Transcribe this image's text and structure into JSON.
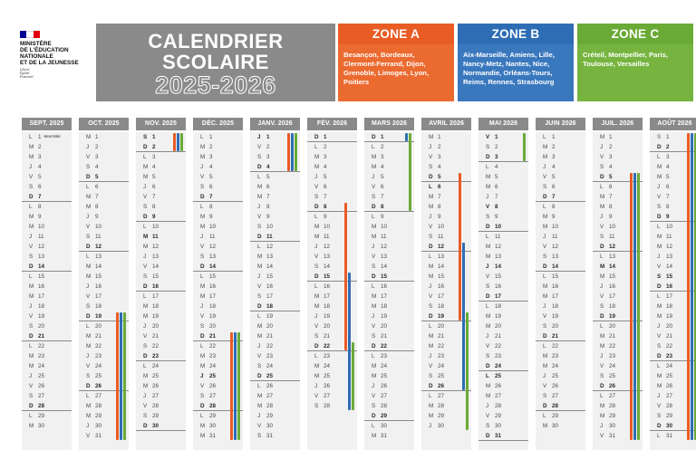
{
  "ministry": {
    "name_lines": [
      "Ministère",
      "de l'Éducation",
      "nationale",
      "et de la Jeunesse"
    ],
    "motto_lines": [
      "Liberté",
      "Égalité",
      "Fraternité"
    ]
  },
  "title": {
    "line1": "CALENDRIER",
    "line2": "SCOLAIRE",
    "years": "2025-2026"
  },
  "colors": {
    "zone_a": "#e95c25",
    "zone_b": "#2e6db4",
    "zone_c": "#6aaa36",
    "header_gray": "#8a8a8a",
    "flag": [
      "#000091",
      "#ffffff",
      "#e1000f"
    ]
  },
  "zones": [
    {
      "key": "a",
      "name": "ZONE A",
      "cities": "Besançon, Bordeaux, Clermont-Ferrand, Dijon, Grenoble, Limoges, Lyon, Poitiers"
    },
    {
      "key": "b",
      "name": "ZONE B",
      "cities": "Aix-Marseille, Amiens, Lille, Nancy-Metz, Nantes, Nice, Normandie, Orléans-Tours, Reims, Rennes, Strasbourg"
    },
    {
      "key": "c",
      "name": "ZONE C",
      "cities": "Créteil, Montpellier, Paris, Toulouse, Versailles"
    }
  ],
  "rentree_label": "RENTRÉE",
  "months": [
    {
      "label": "SEPT. 2025",
      "start_weekday": 0,
      "num_days": 30,
      "holidays": [],
      "rentree_day": 1,
      "vacations": []
    },
    {
      "label": "OCT. 2025",
      "start_weekday": 2,
      "num_days": 31,
      "holidays": [],
      "vacations": [
        {
          "zone": "a",
          "from": 19,
          "to": 31
        },
        {
          "zone": "b",
          "from": 19,
          "to": 31
        },
        {
          "zone": "c",
          "from": 19,
          "to": 31
        }
      ]
    },
    {
      "label": "NOV. 2025",
      "start_weekday": 5,
      "num_days": 30,
      "holidays": [
        1,
        11
      ],
      "vacations": [
        {
          "zone": "a",
          "from": 1,
          "to": 2
        },
        {
          "zone": "b",
          "from": 1,
          "to": 2
        },
        {
          "zone": "c",
          "from": 1,
          "to": 2
        }
      ]
    },
    {
      "label": "DÉC. 2025",
      "start_weekday": 0,
      "num_days": 31,
      "holidays": [
        25
      ],
      "vacations": [
        {
          "zone": "a",
          "from": 21,
          "to": 31
        },
        {
          "zone": "b",
          "from": 21,
          "to": 31
        },
        {
          "zone": "c",
          "from": 21,
          "to": 31
        }
      ]
    },
    {
      "label": "JANV. 2026",
      "start_weekday": 3,
      "num_days": 31,
      "holidays": [
        1
      ],
      "vacations": [
        {
          "zone": "a",
          "from": 1,
          "to": 4
        },
        {
          "zone": "b",
          "from": 1,
          "to": 4
        },
        {
          "zone": "c",
          "from": 1,
          "to": 4
        }
      ]
    },
    {
      "label": "FÉV. 2026",
      "start_weekday": 6,
      "num_days": 28,
      "holidays": [],
      "vacations": [
        {
          "zone": "a",
          "from": 8,
          "to": 22
        },
        {
          "zone": "b",
          "from": 15,
          "to": 28
        },
        {
          "zone": "c",
          "from": 22,
          "to": 28
        }
      ]
    },
    {
      "label": "MARS 2026",
      "start_weekday": 6,
      "num_days": 31,
      "holidays": [],
      "vacations": [
        {
          "zone": "b",
          "from": 1,
          "to": 1
        },
        {
          "zone": "c",
          "from": 1,
          "to": 8
        }
      ]
    },
    {
      "label": "AVRIL 2026",
      "start_weekday": 2,
      "num_days": 30,
      "holidays": [
        6
      ],
      "vacations": [
        {
          "zone": "a",
          "from": 5,
          "to": 19
        },
        {
          "zone": "b",
          "from": 12,
          "to": 26
        },
        {
          "zone": "c",
          "from": 19,
          "to": 30
        }
      ]
    },
    {
      "label": "MAI 2026",
      "start_weekday": 4,
      "num_days": 31,
      "holidays": [
        1,
        8,
        14,
        25
      ],
      "vacations": [
        {
          "zone": "c",
          "from": 1,
          "to": 3
        }
      ]
    },
    {
      "label": "JUIN 2026",
      "start_weekday": 0,
      "num_days": 30,
      "holidays": [],
      "vacations": []
    },
    {
      "label": "JUIL. 2026",
      "start_weekday": 2,
      "num_days": 31,
      "holidays": [
        14
      ],
      "vacations": [
        {
          "zone": "a",
          "from": 5,
          "to": 31
        },
        {
          "zone": "b",
          "from": 5,
          "to": 31
        },
        {
          "zone": "c",
          "from": 5,
          "to": 31
        }
      ]
    },
    {
      "label": "AOÛT 2026",
      "start_weekday": 5,
      "num_days": 31,
      "holidays": [
        15
      ],
      "vacations": [
        {
          "zone": "a",
          "from": 1,
          "to": 31
        },
        {
          "zone": "b",
          "from": 1,
          "to": 31
        },
        {
          "zone": "c",
          "from": 1,
          "to": 31
        }
      ]
    }
  ],
  "weekday_letters": [
    "L",
    "M",
    "M",
    "J",
    "V",
    "S",
    "D"
  ]
}
